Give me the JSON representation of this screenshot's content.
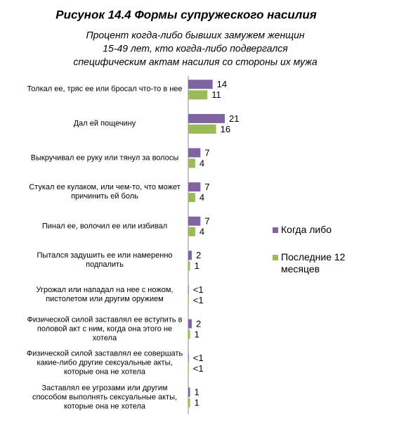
{
  "chart_data": {
    "type": "bar",
    "orientation": "horizontal",
    "title": "Рисунок 14.4  Формы супружеского насилия",
    "subtitle": [
      "Процент когда-либо бывших замужем женщин",
      "15-49 лет,  кто когда-либо подвергался",
      "специфическим актам насилия со стороны их мужа"
    ],
    "categories": [
      "Толкал ее, тряс ее или бросал что-то в нее",
      "Дал ей пощечину",
      "Выкручивал ее руку или тянул за волосы",
      "Стукал ее кулаком, или чем-то, что может причинить ей боль",
      "Пинал ее, волочил ее или избивал",
      "Пытался задушить ее или намеренно подпалить",
      "Угрожал или нападал на нее с ножом, пистолетом или другим оружием",
      "Физической силой заставлял ее вступить в половой акт с ним, когда она этого не хотела",
      "Физической силой заставлял ее совершать какие-либо другие сексуальные акты, которые она не хотела",
      "Заставлял ее угрозами или другим способом выполнять сексуальные акты, которые она не хотела"
    ],
    "series": [
      {
        "name": "Когда либо",
        "color": "#8064a2",
        "values": [
          14,
          21,
          7,
          7,
          7,
          2,
          0.3,
          2,
          0.3,
          1
        ],
        "value_labels": [
          "14",
          "21",
          "7",
          "7",
          "7",
          "2",
          "<1",
          "2",
          "<1",
          "1"
        ]
      },
      {
        "name": "Последние 12 месяцев",
        "color": "#9bbb59",
        "values": [
          11,
          16,
          4,
          4,
          4,
          1,
          0.3,
          1,
          0.3,
          1
        ],
        "value_labels": [
          "11",
          "16",
          "4",
          "4",
          "4",
          "1",
          "<1",
          "1",
          "<1",
          "1"
        ]
      }
    ],
    "xlim": [
      0,
      22
    ],
    "legend": "right"
  }
}
